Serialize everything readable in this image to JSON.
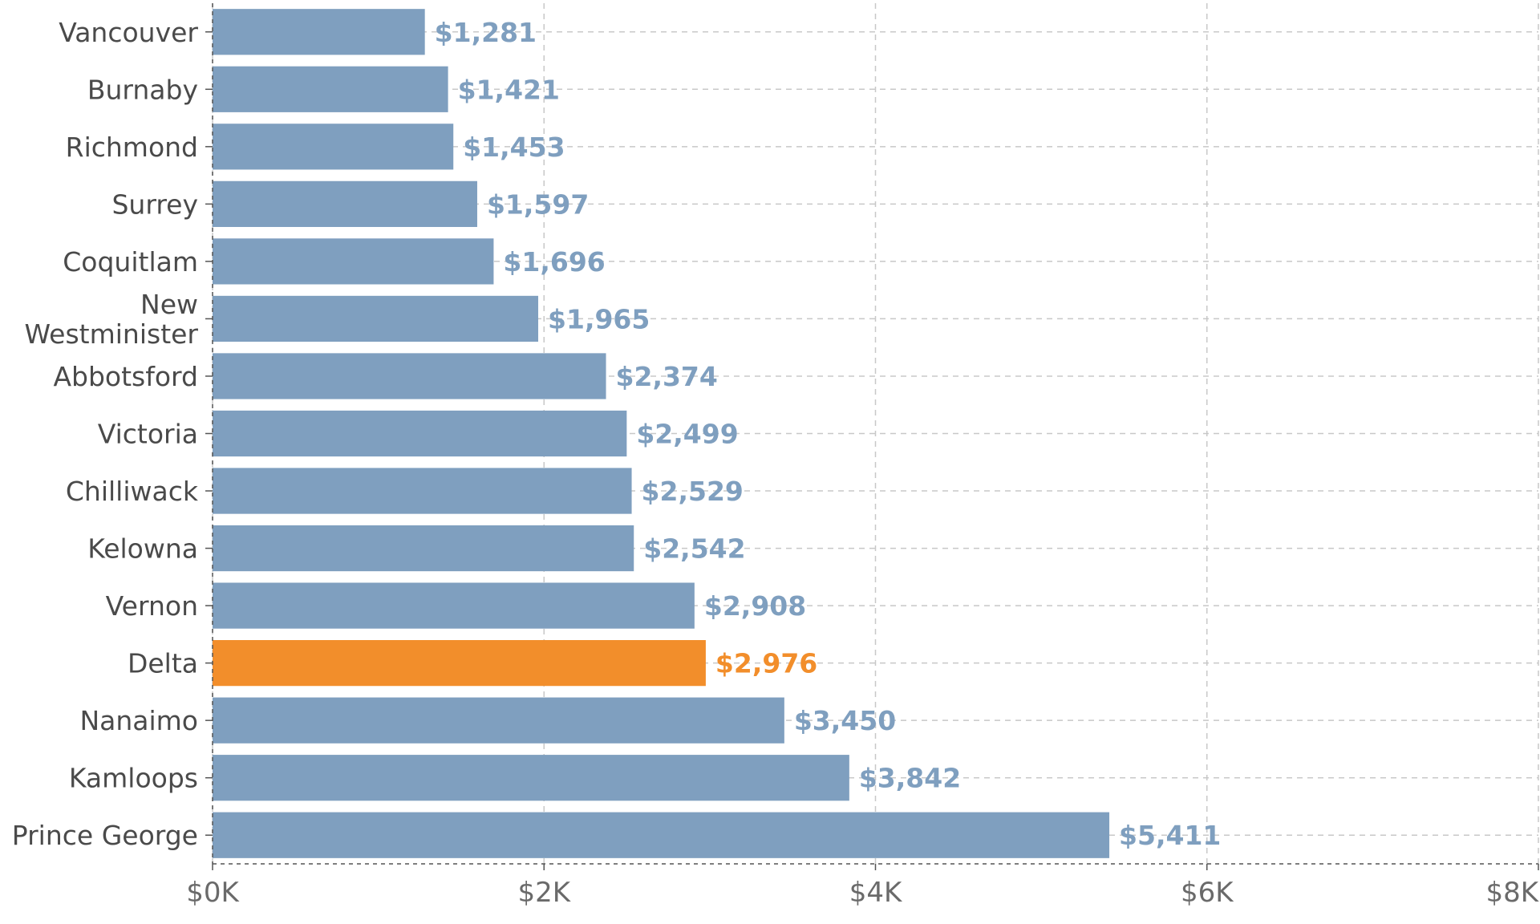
{
  "chart_data": {
    "type": "bar",
    "orientation": "horizontal",
    "title": "",
    "xlabel": "",
    "ylabel": "",
    "categories": [
      "Vancouver",
      "Burnaby",
      "Richmond",
      "Surrey",
      "Coquitlam",
      "New Westminister",
      "Abbotsford",
      "Victoria",
      "Chilliwack",
      "Kelowna",
      "Vernon",
      "Delta",
      "Nanaimo",
      "Kamloops",
      "Prince George"
    ],
    "values": [
      1281,
      1421,
      1453,
      1597,
      1696,
      1965,
      2374,
      2499,
      2529,
      2542,
      2908,
      2976,
      3450,
      3842,
      5411
    ],
    "value_labels": [
      "$1,281",
      "$1,421",
      "$1,453",
      "$1,597",
      "$1,696",
      "$1,965",
      "$2,374",
      "$2,499",
      "$2,529",
      "$2,542",
      "$2,908",
      "$2,976",
      "$3,450",
      "$3,842",
      "$5,411"
    ],
    "highlight": "Delta",
    "xlim": [
      0,
      8000
    ],
    "xticks": [
      0,
      2000,
      4000,
      6000,
      8000
    ],
    "xtick_labels": [
      "$0K",
      "$2K",
      "$4K",
      "$6K",
      "$8K"
    ],
    "grid": true,
    "colors": {
      "bar": "#7f9fbf",
      "highlight": "#f28e2b",
      "grid": "#c8c8c8",
      "axis": "#555555"
    }
  }
}
